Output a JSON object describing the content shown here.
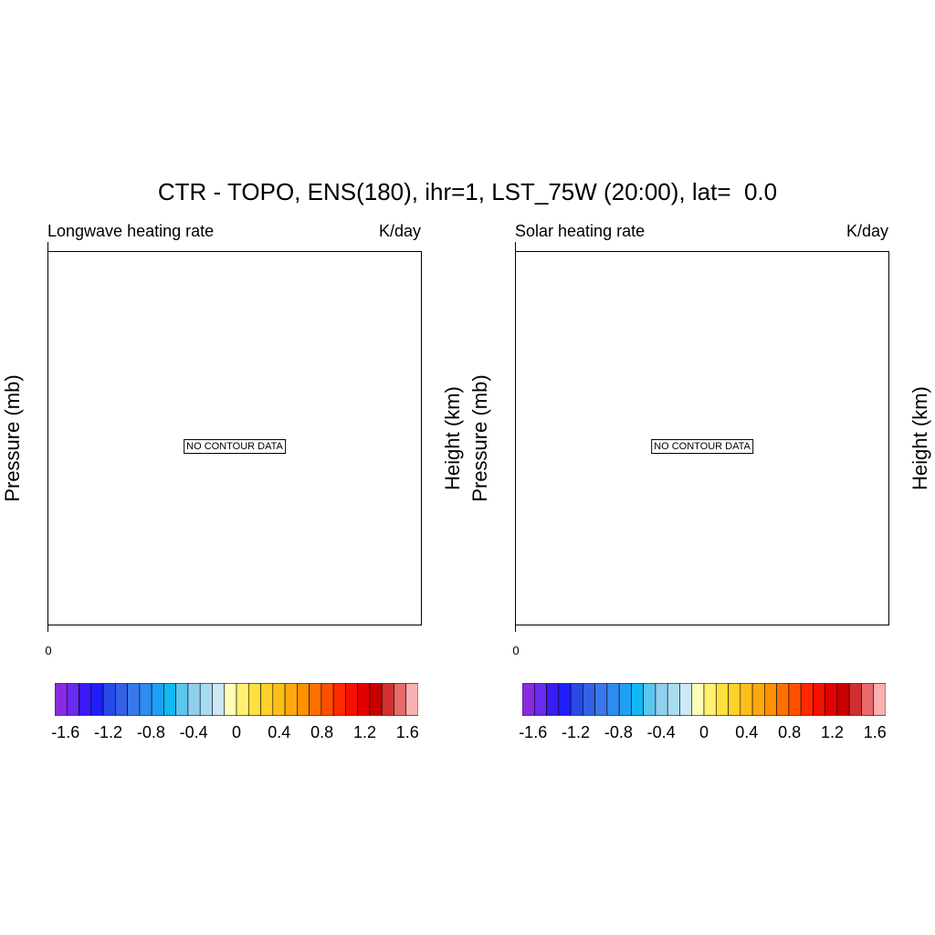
{
  "title": "CTR - TOPO, ENS(180), ihr=1, LST_75W (20:00), lat=  0.0",
  "colors": [
    "#8A2BE2",
    "#6A2BF0",
    "#3A1AF5",
    "#1E1EFF",
    "#2848E8",
    "#3362E6",
    "#3A78EA",
    "#2E8BF0",
    "#1DA0F5",
    "#12B8F5",
    "#5CC6EE",
    "#8ED0EE",
    "#A8DCF0",
    "#CDE9F6",
    "#FFFFB8",
    "#FFF070",
    "#FFE040",
    "#FFD02A",
    "#FFBF1A",
    "#FFA80E",
    "#FF9000",
    "#FF7000",
    "#FF5000",
    "#FF2A00",
    "#F51000",
    "#E00000",
    "#C80000",
    "#D03030",
    "#E86A6A",
    "#F8B0B0"
  ],
  "chart_data": [
    {
      "type": "heatmap",
      "title": "Longwave heating rate",
      "units": "K/day",
      "ylabel_left": "Pressure (mb)",
      "ylabel_right": "Height (km)",
      "x_tick_labels": [
        "0"
      ],
      "message": "NO CONTOUR DATA",
      "colorbar": {
        "tick_labels": [
          "-1.6",
          "-1.2",
          "-0.8",
          "-0.4",
          "0",
          "0.4",
          "0.8",
          "1.2",
          "1.6"
        ],
        "tick_values": [
          -1.6,
          -1.2,
          -0.8,
          -0.4,
          0,
          0.4,
          0.8,
          1.2,
          1.6
        ],
        "min": -1.7,
        "max": 1.7
      }
    },
    {
      "type": "heatmap",
      "title": "Solar heating rate",
      "units": "K/day",
      "ylabel_left": "Pressure (mb)",
      "ylabel_right": "Height (km)",
      "x_tick_labels": [
        "0"
      ],
      "message": "NO CONTOUR DATA",
      "colorbar": {
        "tick_labels": [
          "-1.6",
          "-1.2",
          "-0.8",
          "-0.4",
          "0",
          "0.4",
          "0.8",
          "1.2",
          "1.6"
        ],
        "tick_values": [
          -1.6,
          -1.2,
          -0.8,
          -0.4,
          0,
          0.4,
          0.8,
          1.2,
          1.6
        ],
        "min": -1.7,
        "max": 1.7
      }
    }
  ]
}
